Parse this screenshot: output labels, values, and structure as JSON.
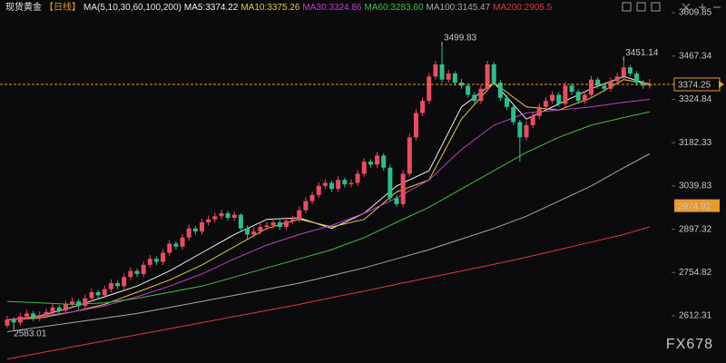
{
  "chart_data": {
    "type": "candlestick",
    "header": {
      "symbol": "现货黄金",
      "period": "【日线】",
      "ma_set": "MA(5,10,30,60,100,200)"
    },
    "watermark": "FX678",
    "ylim": [
      2457,
      3652
    ],
    "yticks": [
      3609.85,
      3467.34,
      3324.84,
      3182.33,
      3039.83,
      2897.32,
      2754.82,
      2612.31
    ],
    "grid": false,
    "last_price": 3374.25,
    "marked_price": 2974.92,
    "up_color": "#ec4c5f",
    "down_color": "#2bbf8a",
    "annotations": [
      {
        "label": "3499.83",
        "value": 3499.83,
        "x": 67
      },
      {
        "label": "3451.14",
        "value": 3451.14,
        "x": 95
      },
      {
        "label": "2583.01",
        "value": 2583.01,
        "x": 1
      }
    ],
    "candles": [
      [
        2580,
        2612,
        2572,
        2600
      ],
      [
        2600,
        2608,
        2583.01,
        2590
      ],
      [
        2590,
        2622,
        2580,
        2610
      ],
      [
        2610,
        2632,
        2600,
        2620
      ],
      [
        2620,
        2628,
        2595,
        2605
      ],
      [
        2605,
        2627,
        2595,
        2615
      ],
      [
        2615,
        2637,
        2605,
        2625
      ],
      [
        2625,
        2652,
        2615,
        2640
      ],
      [
        2640,
        2648,
        2620,
        2630
      ],
      [
        2630,
        2662,
        2620,
        2650
      ],
      [
        2650,
        2672,
        2640,
        2660
      ],
      [
        2660,
        2668,
        2635,
        2645
      ],
      [
        2645,
        2682,
        2635,
        2670
      ],
      [
        2670,
        2702,
        2660,
        2690
      ],
      [
        2690,
        2698,
        2670,
        2680
      ],
      [
        2680,
        2712,
        2670,
        2700
      ],
      [
        2700,
        2732,
        2690,
        2720
      ],
      [
        2720,
        2728,
        2700,
        2710
      ],
      [
        2710,
        2752,
        2700,
        2740
      ],
      [
        2740,
        2772,
        2730,
        2760
      ],
      [
        2760,
        2768,
        2740,
        2750
      ],
      [
        2750,
        2792,
        2740,
        2780
      ],
      [
        2780,
        2812,
        2770,
        2800
      ],
      [
        2800,
        2808,
        2780,
        2790
      ],
      [
        2790,
        2832,
        2780,
        2820
      ],
      [
        2820,
        2862,
        2810,
        2850
      ],
      [
        2850,
        2858,
        2830,
        2840
      ],
      [
        2840,
        2882,
        2830,
        2870
      ],
      [
        2870,
        2912,
        2860,
        2900
      ],
      [
        2900,
        2908,
        2880,
        2890
      ],
      [
        2890,
        2932,
        2880,
        2920
      ],
      [
        2920,
        2942,
        2910,
        2930
      ],
      [
        2930,
        2952,
        2920,
        2940
      ],
      [
        2940,
        2962,
        2930,
        2950
      ],
      [
        2950,
        2958,
        2925,
        2935
      ],
      [
        2935,
        2957,
        2925,
        2945
      ],
      [
        2945,
        2950,
        2890,
        2900
      ],
      [
        2900,
        2910,
        2865,
        2880
      ],
      [
        2880,
        2902,
        2870,
        2890
      ],
      [
        2890,
        2917,
        2880,
        2905
      ],
      [
        2905,
        2922,
        2895,
        2910
      ],
      [
        2910,
        2932,
        2900,
        2920
      ],
      [
        2920,
        2928,
        2895,
        2905
      ],
      [
        2905,
        2937,
        2895,
        2925
      ],
      [
        2925,
        2942,
        2915,
        2930
      ],
      [
        2930,
        2972,
        2920,
        2960
      ],
      [
        2960,
        3002,
        2950,
        2990
      ],
      [
        2990,
        3022,
        2980,
        3010
      ],
      [
        3010,
        3052,
        3000,
        3040
      ],
      [
        3040,
        3062,
        3030,
        3050
      ],
      [
        3050,
        3058,
        3020,
        3030
      ],
      [
        3030,
        3072,
        3020,
        3060
      ],
      [
        3060,
        3068,
        3035,
        3045
      ],
      [
        3045,
        3062,
        3035,
        3050
      ],
      [
        3050,
        3092,
        3040,
        3080
      ],
      [
        3080,
        3132,
        3070,
        3120
      ],
      [
        3120,
        3128,
        3100,
        3110
      ],
      [
        3110,
        3152,
        3100,
        3140
      ],
      [
        3140,
        3148,
        3090,
        3100
      ],
      [
        3100,
        3110,
        2990,
        3000
      ],
      [
        3000,
        3010,
        2970,
        2980
      ],
      [
        2980,
        3092,
        2970,
        3080
      ],
      [
        3080,
        3212,
        3070,
        3200
      ],
      [
        3200,
        3292,
        3190,
        3280
      ],
      [
        3280,
        3332,
        3270,
        3320
      ],
      [
        3320,
        3412,
        3310,
        3400
      ],
      [
        3400,
        3452,
        3390,
        3440
      ],
      [
        3440,
        3499.83,
        3380,
        3390
      ],
      [
        3390,
        3422,
        3380,
        3410
      ],
      [
        3410,
        3418,
        3370,
        3380
      ],
      [
        3380,
        3392,
        3360,
        3370
      ],
      [
        3370,
        3378,
        3330,
        3340
      ],
      [
        3340,
        3348,
        3310,
        3320
      ],
      [
        3320,
        3372,
        3310,
        3360
      ],
      [
        3360,
        3452,
        3350,
        3440
      ],
      [
        3440,
        3448,
        3370,
        3380
      ],
      [
        3380,
        3388,
        3320,
        3330
      ],
      [
        3330,
        3338,
        3290,
        3300
      ],
      [
        3300,
        3308,
        3240,
        3250
      ],
      [
        3250,
        3258,
        3120,
        3200
      ],
      [
        3200,
        3252,
        3190,
        3240
      ],
      [
        3240,
        3282,
        3230,
        3270
      ],
      [
        3270,
        3312,
        3260,
        3300
      ],
      [
        3300,
        3332,
        3290,
        3320
      ],
      [
        3320,
        3352,
        3310,
        3340
      ],
      [
        3340,
        3348,
        3300,
        3310
      ],
      [
        3310,
        3382,
        3300,
        3370
      ],
      [
        3370,
        3378,
        3340,
        3350
      ],
      [
        3350,
        3358,
        3310,
        3320
      ],
      [
        3320,
        3352,
        3310,
        3340
      ],
      [
        3340,
        3402,
        3330,
        3390
      ],
      [
        3390,
        3398,
        3360,
        3370
      ],
      [
        3370,
        3378,
        3350,
        3360
      ],
      [
        3360,
        3397,
        3350,
        3385
      ],
      [
        3385,
        3412,
        3375,
        3400
      ],
      [
        3400,
        3451.14,
        3390,
        3430
      ],
      [
        3430,
        3438,
        3400,
        3410
      ],
      [
        3410,
        3418,
        3370,
        3380
      ],
      [
        3380,
        3388,
        3360,
        3370
      ],
      [
        3370,
        3392,
        3360,
        3374.25
      ]
    ],
    "ma_x": [
      0,
      5,
      10,
      15,
      20,
      25,
      30,
      35,
      40,
      45,
      50,
      55,
      60,
      65,
      70,
      75,
      80,
      85,
      90,
      95,
      99
    ],
    "series": [
      {
        "name": "MA5",
        "label": "MA5:3374.22",
        "color": "#f2f2f2",
        "values": [
          2598,
          2612,
          2640,
          2675,
          2710,
          2760,
          2820,
          2880,
          2930,
          2935,
          2900,
          2950,
          3040,
          3090,
          3300,
          3380,
          3260,
          3310,
          3360,
          3400,
          3374.22
        ]
      },
      {
        "name": "MA10",
        "label": "MA10:3375.26",
        "color": "#e8c840",
        "values": [
          2600,
          2605,
          2625,
          2650,
          2690,
          2730,
          2780,
          2840,
          2900,
          2930,
          2905,
          2930,
          3020,
          3060,
          3260,
          3380,
          3300,
          3290,
          3330,
          3390,
          3375.26
        ]
      },
      {
        "name": "MA30",
        "label": "MA30:3324.86",
        "color": "#c23fc8",
        "values": [
          2600,
          2610,
          2625,
          2645,
          2675,
          2710,
          2750,
          2800,
          2845,
          2880,
          2910,
          2950,
          3000,
          3060,
          3160,
          3240,
          3280,
          3290,
          3300,
          3315,
          3324.86
        ]
      },
      {
        "name": "MA60",
        "label": "MA60:3283.60",
        "color": "#3ec23e",
        "values": [
          2660,
          2655,
          2650,
          2655,
          2670,
          2690,
          2710,
          2740,
          2770,
          2800,
          2830,
          2870,
          2920,
          2970,
          3030,
          3090,
          3150,
          3200,
          3240,
          3265,
          3283.6
        ]
      },
      {
        "name": "MA100",
        "label": "MA100:3145.47",
        "color": "#a8a8a8",
        "values": [
          2560,
          2575,
          2590,
          2605,
          2620,
          2640,
          2660,
          2680,
          2700,
          2720,
          2745,
          2770,
          2800,
          2830,
          2865,
          2900,
          2940,
          2990,
          3040,
          3100,
          3145.47
        ]
      },
      {
        "name": "MA200",
        "label": "MA200:2905.5",
        "color": "#e03838",
        "values": [
          2470,
          2490,
          2510,
          2530,
          2550,
          2570,
          2590,
          2610,
          2630,
          2650,
          2672,
          2694,
          2716,
          2738,
          2760,
          2782,
          2805,
          2830,
          2855,
          2880,
          2905.5
        ]
      }
    ]
  }
}
